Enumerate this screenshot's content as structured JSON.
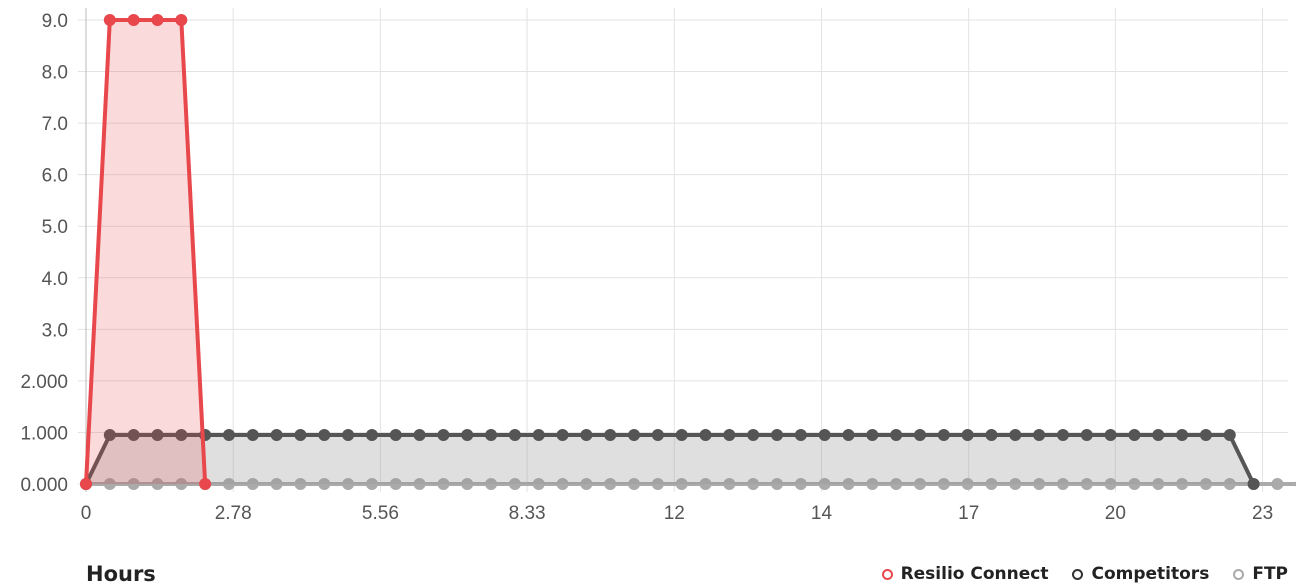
{
  "chart_data": {
    "type": "area",
    "xlabel": "Hours",
    "ylabel": "",
    "y_ticks": [
      "0.000",
      "1.000",
      "2.000",
      "3.0",
      "4.0",
      "5.0",
      "6.0",
      "7.0",
      "8.0",
      "9.0"
    ],
    "y_tick_values": [
      0,
      1,
      2,
      3,
      4,
      5,
      6,
      7,
      8,
      9
    ],
    "ylim": [
      0,
      9
    ],
    "x_ticks": [
      "0",
      "2.78",
      "5.56",
      "8.33",
      "12",
      "14",
      "17",
      "20",
      "23"
    ],
    "x_tick_values": [
      0,
      2.78,
      5.56,
      8.33,
      11.11,
      13.89,
      16.67,
      19.44,
      22.22
    ],
    "xlim": [
      0,
      22.7
    ],
    "grid": true,
    "legend_position": "bottom-right",
    "series": [
      {
        "name": "Resilio Connect",
        "color": "#e8474c",
        "fill": "rgba(232,71,76,0.2)",
        "x": [
          0,
          0.45,
          0.9,
          1.35,
          1.8,
          2.25
        ],
        "y": [
          0,
          9,
          9,
          9,
          9,
          0
        ]
      },
      {
        "name": "Competitors",
        "color": "#555555",
        "fill": "rgba(150,150,150,0.3)",
        "x_start": 0,
        "x_step": 0.45,
        "y": [
          0,
          0.95,
          0.95,
          0.95,
          0.95,
          0.95,
          0.95,
          0.95,
          0.95,
          0.95,
          0.95,
          0.95,
          0.95,
          0.95,
          0.95,
          0.95,
          0.95,
          0.95,
          0.95,
          0.95,
          0.95,
          0.95,
          0.95,
          0.95,
          0.95,
          0.95,
          0.95,
          0.95,
          0.95,
          0.95,
          0.95,
          0.95,
          0.95,
          0.95,
          0.95,
          0.95,
          0.95,
          0.95,
          0.95,
          0.95,
          0.95,
          0.95,
          0.95,
          0.95,
          0.95,
          0.95,
          0.95,
          0.95,
          0.95,
          0
        ]
      },
      {
        "name": "FTP",
        "color": "#aaaaaa",
        "fill": "none",
        "x_start": 0,
        "x_step": 0.45,
        "y": [
          0,
          0,
          0,
          0,
          0,
          0,
          0,
          0,
          0,
          0,
          0,
          0,
          0,
          0,
          0,
          0,
          0,
          0,
          0,
          0,
          0,
          0,
          0,
          0,
          0,
          0,
          0,
          0,
          0,
          0,
          0,
          0,
          0,
          0,
          0,
          0,
          0,
          0,
          0,
          0,
          0,
          0,
          0,
          0,
          0,
          0,
          0,
          0,
          0,
          0,
          0,
          0
        ]
      }
    ]
  },
  "legend": {
    "items": [
      {
        "label": "Resilio Connect",
        "color": "#e8474c"
      },
      {
        "label": "Competitors",
        "color": "#333333"
      },
      {
        "label": "FTP",
        "color": "#aaaaaa"
      }
    ]
  }
}
